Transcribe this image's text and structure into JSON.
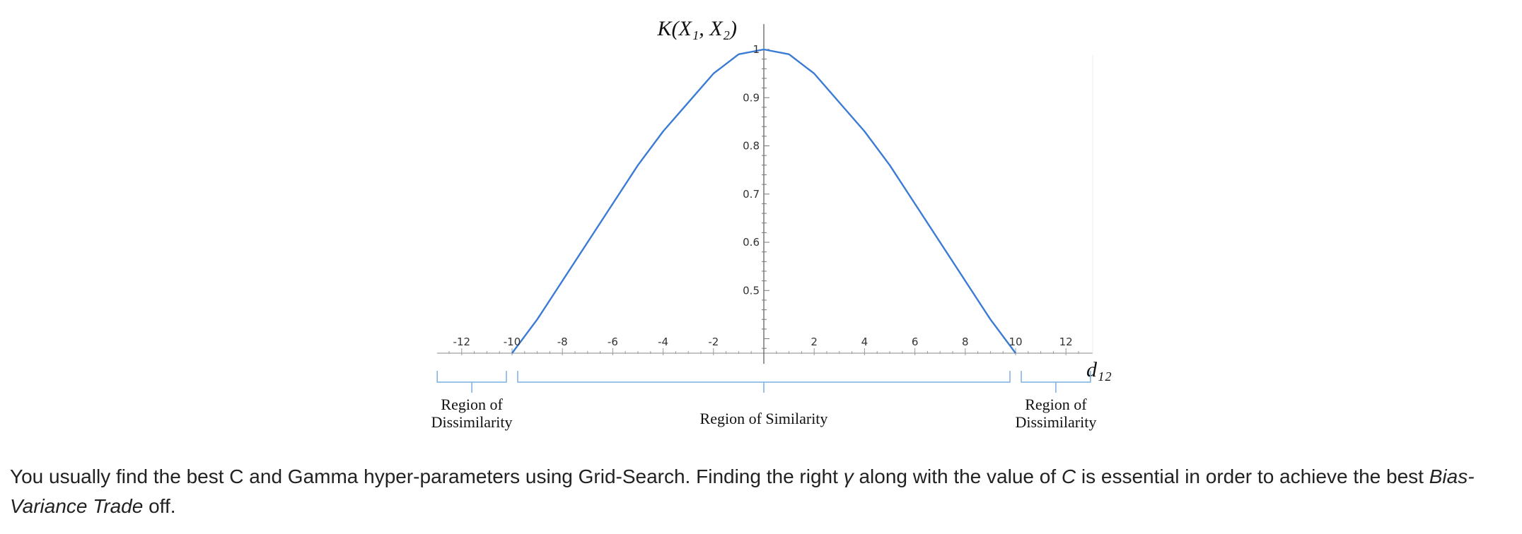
{
  "chart_data": {
    "type": "line",
    "function": "gaussian-kernel-curve",
    "ylabel": "K(X₁, X₂)",
    "xlabel": "d₁₂",
    "xlim": [
      -13,
      13
    ],
    "ylim": [
      0.37,
      1.05
    ],
    "x_ticks": [
      -12,
      -10,
      -8,
      -6,
      -4,
      -2,
      2,
      4,
      6,
      8,
      10,
      12
    ],
    "x_tick_labels": [
      "-12",
      "-10",
      "-8",
      "-6",
      "-4",
      "-2",
      "2",
      "4",
      "6",
      "8",
      "10",
      "12"
    ],
    "y_ticks": [
      0.5,
      0.6,
      0.7,
      0.8,
      0.9,
      1
    ],
    "y_tick_labels": [
      "0.5",
      "0.6",
      "0.7",
      "0.8",
      "0.9",
      "1"
    ],
    "series": [
      {
        "color": "#3a7bd5",
        "x": [
          -10,
          -9,
          -8,
          -7,
          -6,
          -5,
          -4,
          -3,
          -2,
          -1,
          0,
          1,
          2,
          3,
          4,
          5,
          6,
          7,
          8,
          9,
          10
        ],
        "y": [
          0.37,
          0.44,
          0.52,
          0.6,
          0.68,
          0.76,
          0.83,
          0.89,
          0.95,
          0.99,
          1.0,
          0.99,
          0.95,
          0.89,
          0.83,
          0.76,
          0.68,
          0.6,
          0.52,
          0.44,
          0.37
        ]
      }
    ],
    "regions": [
      {
        "label_lines": [
          "Region of",
          "Dissimilarity"
        ],
        "from": -13,
        "to": -10
      },
      {
        "label_lines": [
          "Region of Similarity"
        ],
        "from": -10,
        "to": 10
      },
      {
        "label_lines": [
          "Region of",
          "Dissimilarity"
        ],
        "from": 10,
        "to": 13
      }
    ],
    "bracket_color": "#7aaee0"
  },
  "paragraph": {
    "t1": "You usually find the best C and Gamma hyper-parameters using Grid-Search. Finding the right ",
    "gamma": "γ",
    "t2": " along with the value of ",
    "c": "C",
    "t3": " is essential in order to achieve the best ",
    "em": "Bias-Variance Trade",
    "t4": " off."
  }
}
